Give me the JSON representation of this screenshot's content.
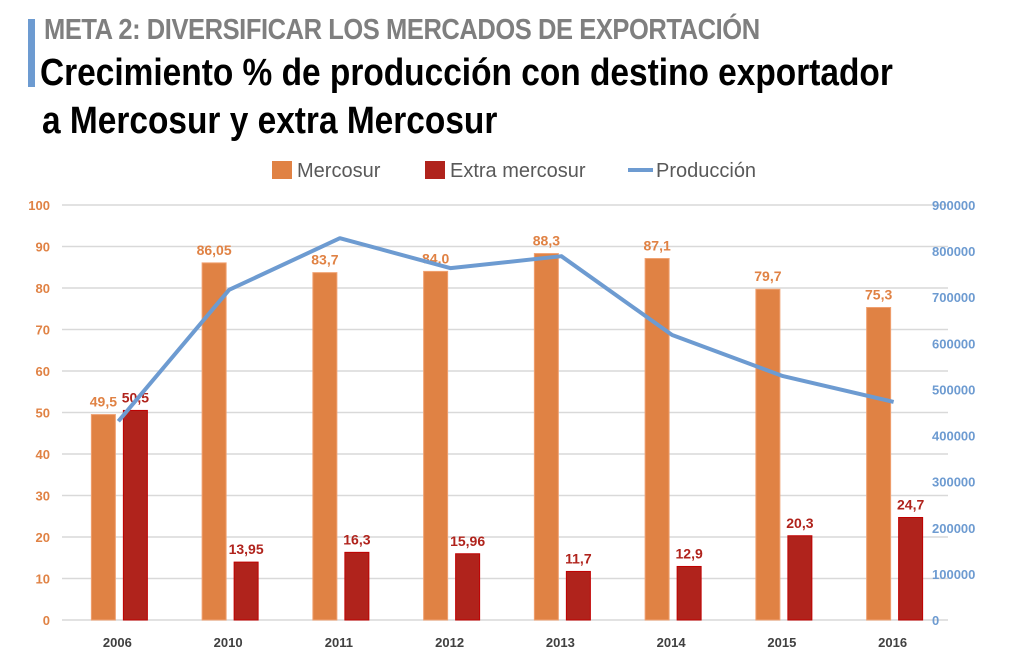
{
  "header": {
    "kicker": "META 2: DIVERSIFICAR LOS MERCADOS DE EXPORTACIÓN",
    "title_line1": "Crecimiento % de producción con destino exportador",
    "title_line2": "a Mercosur y extra Mercosur"
  },
  "chart_data": {
    "type": "bar",
    "categories": [
      "2006",
      "2010",
      "2011",
      "2012",
      "2013",
      "2014",
      "2015",
      "2016"
    ],
    "series": [
      {
        "name": "Mercosur",
        "type": "bar",
        "axis": "left",
        "color": "#e08244",
        "labels": [
          "49,5",
          "86,05",
          "83,7",
          "84,0",
          "88,3",
          "87,1",
          "79,7",
          "75,3"
        ],
        "values": [
          49.5,
          86.05,
          83.7,
          84.0,
          88.3,
          87.1,
          79.7,
          75.3
        ]
      },
      {
        "name": "Extra mercosur",
        "type": "bar",
        "axis": "left",
        "color": "#b0231c",
        "labels": [
          "50,5",
          "13,95",
          "16,3",
          "15,96",
          "11,7",
          "12,9",
          "20,3",
          "24,7"
        ],
        "values": [
          50.5,
          13.95,
          16.3,
          15.96,
          11.7,
          12.9,
          20.3,
          24.7
        ]
      },
      {
        "name": "Producción",
        "type": "line",
        "axis": "right",
        "color": "#6d9bd1",
        "values": [
          431000,
          716000,
          828000,
          763000,
          789000,
          618000,
          529000,
          473000
        ]
      }
    ],
    "y_left": {
      "range": [
        0,
        100
      ],
      "ticks": [
        "0",
        "10",
        "20",
        "30",
        "40",
        "50",
        "60",
        "70",
        "80",
        "90",
        "100"
      ],
      "color": "#e08244"
    },
    "y_right": {
      "range": [
        0,
        900000
      ],
      "ticks": [
        "0",
        "100000",
        "200000",
        "300000",
        "400000",
        "500000",
        "600000",
        "700000",
        "800000",
        "900000"
      ],
      "color": "#6d9bd1"
    },
    "grid": true,
    "legend": "top-center"
  }
}
